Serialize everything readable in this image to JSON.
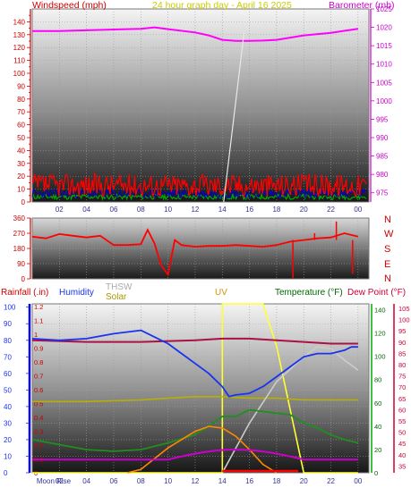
{
  "header": {
    "windspeed": "Windspeed (mph)",
    "title": "24 hour graph day - April 16 2025",
    "barometer": "Barometer (mb)"
  },
  "bottom_labels": {
    "rainfall": "Rainfall (.in)",
    "humidity": "Humidity",
    "thsw": "THSW",
    "solar": "Solar",
    "uv": "UV",
    "temperature": "Temperature (°F)",
    "dewpoint": "Dew Point (°F)",
    "moonrise": "Moon Rise"
  },
  "colors": {
    "wind": "#ff0000",
    "gust": "#0000cc",
    "wind_low": "#00aa00",
    "barometer": "#ff00ff",
    "humidity": "#1a33ee",
    "temperature": "#00aa00",
    "dewpoint": "#cc0033",
    "solar": "#b8b000",
    "thsw": "#cccccc",
    "uv": "#ffff33",
    "rain": "#ff0000",
    "label_red": "#cc0000"
  },
  "chart_data": [
    {
      "type": "line",
      "name": "windspeed-barometer",
      "x_ticks": [
        "02",
        "04",
        "06",
        "08",
        "10",
        "12",
        "14",
        "16",
        "18",
        "20",
        "22",
        "00"
      ],
      "y_left_ticks": [
        0,
        5,
        10,
        15,
        20,
        25,
        30,
        35,
        40,
        45,
        50,
        55,
        60,
        65,
        70,
        75,
        80,
        85,
        90,
        95,
        100,
        105,
        110,
        115,
        120,
        125,
        130,
        135,
        140,
        145
      ],
      "y_left_labeled": [
        0,
        10,
        20,
        30,
        40,
        50,
        60,
        70,
        80,
        90,
        100,
        110,
        120,
        130,
        140
      ],
      "ylim_left": [
        0,
        150
      ],
      "y_right_ticks": [
        975,
        980,
        985,
        990,
        995,
        1000,
        1005,
        1010,
        1015,
        1020,
        1025
      ],
      "ylim_right": [
        975,
        1025
      ],
      "series": [
        {
          "name": "Barometer",
          "axis": "right",
          "x": [
            0,
            2,
            4,
            6,
            8,
            9,
            10,
            12,
            13,
            14,
            15,
            16,
            17,
            18,
            20,
            22,
            24
          ],
          "values": [
            1019,
            1019,
            1019.2,
            1019.4,
            1019.6,
            1020,
            1019.5,
            1018.6,
            1017.8,
            1016.6,
            1016.3,
            1016.3,
            1016.4,
            1016.6,
            1017.8,
            1018.5,
            1019.6
          ]
        },
        {
          "name": "Wind",
          "axis": "left",
          "x": [
            0,
            2,
            4,
            6,
            8,
            10,
            12,
            14,
            16,
            18,
            20,
            22,
            24
          ],
          "values": [
            14,
            12,
            13,
            11,
            15,
            12,
            13,
            14,
            15,
            13,
            12,
            13,
            11
          ]
        },
        {
          "name": "Gust",
          "axis": "left",
          "x": [
            0,
            4,
            8,
            12,
            16,
            20,
            24
          ],
          "values": [
            8,
            7,
            9,
            8,
            9,
            8,
            7
          ]
        }
      ]
    },
    {
      "type": "line",
      "name": "wind-direction",
      "x_ticks": [
        "02",
        "04",
        "06",
        "08",
        "10",
        "12",
        "14",
        "16",
        "18",
        "20",
        "22",
        "00"
      ],
      "y_ticks": [
        0,
        90,
        180,
        270,
        360
      ],
      "compass": [
        "N",
        "W",
        "S",
        "E",
        "N"
      ],
      "ylim": [
        0,
        360
      ],
      "series": [
        {
          "name": "Direction",
          "x": [
            0,
            1,
            2,
            3,
            4,
            5,
            6,
            7,
            8,
            8.5,
            9,
            9.5,
            10,
            10.5,
            11,
            12,
            13,
            14,
            15,
            16,
            17,
            18,
            19,
            20,
            21,
            22,
            23,
            24
          ],
          "values": [
            250,
            240,
            265,
            255,
            245,
            255,
            200,
            200,
            205,
            290,
            210,
            80,
            25,
            230,
            200,
            190,
            195,
            195,
            200,
            195,
            190,
            200,
            220,
            230,
            240,
            245,
            270,
            250
          ]
        }
      ]
    },
    {
      "type": "line",
      "name": "rain-humidity-solar-uv-temperature",
      "x_ticks": [
        "Moon Rise",
        "02",
        "04",
        "06",
        "08",
        "10",
        "12",
        "14",
        "16",
        "18",
        "20",
        "22",
        "00"
      ],
      "y_rain_ticks": [
        0,
        0.1,
        0.2,
        0.3,
        0.4,
        0.5,
        0.6,
        0.7,
        0.8,
        0.9,
        1,
        1.1,
        1.2
      ],
      "y_humidity_ticks": [
        0,
        10,
        20,
        30,
        40,
        50,
        60,
        70,
        80,
        90,
        100
      ],
      "y_temp_ticks": [
        0,
        20,
        40,
        60,
        80,
        100,
        120,
        140
      ],
      "y_dew_ticks": [
        35,
        40,
        45,
        50,
        55,
        60,
        65,
        70,
        75,
        80,
        85,
        90,
        95,
        100,
        105
      ],
      "ylim_humidity": [
        0,
        100
      ],
      "ylim_temp": [
        0,
        140
      ],
      "series": [
        {
          "name": "Humidity",
          "x": [
            0,
            2,
            4,
            6,
            7,
            8,
            9,
            10,
            11,
            12,
            13,
            14,
            14.5,
            15,
            16,
            17,
            18,
            19,
            20,
            21,
            22,
            23,
            23.5,
            24
          ],
          "values": [
            81,
            80,
            81,
            84,
            85,
            86,
            82,
            78,
            72,
            66,
            60,
            52,
            46,
            47,
            48,
            52,
            58,
            64,
            70,
            72,
            72,
            74,
            76,
            76
          ]
        },
        {
          "name": "Temperature",
          "x": [
            0,
            2,
            4,
            6,
            8,
            10,
            12,
            13,
            14,
            15,
            16,
            17,
            18,
            19,
            20,
            21,
            22,
            23,
            24
          ],
          "values": [
            20,
            17,
            14,
            13,
            14,
            18,
            23,
            28,
            34,
            34,
            38,
            37,
            36,
            35,
            30,
            27,
            23,
            20,
            18
          ]
        },
        {
          "name": "Dew Point",
          "x": [
            0,
            4,
            8,
            12,
            14,
            16,
            18,
            20,
            22,
            24
          ],
          "values": [
            80,
            79,
            79,
            80,
            81,
            81,
            80,
            79,
            78,
            78
          ]
        },
        {
          "name": "Solar",
          "x": [
            0,
            4,
            8,
            10,
            12,
            14,
            16,
            18,
            20,
            22,
            24
          ],
          "values": [
            43,
            43,
            44,
            45,
            46,
            46,
            45,
            45,
            44,
            44,
            44
          ]
        },
        {
          "name": "THSW",
          "x": [
            14,
            16,
            18,
            20,
            21,
            22,
            23,
            24
          ],
          "values": [
            0,
            30,
            55,
            70,
            76,
            75,
            68,
            62
          ]
        },
        {
          "name": "UV",
          "x": [
            0,
            14,
            14,
            17,
            18,
            20,
            24
          ],
          "values": [
            0,
            0,
            100,
            100,
            75,
            0,
            0
          ]
        },
        {
          "name": "Orange",
          "x": [
            7,
            8,
            10,
            12,
            13,
            14,
            15,
            16,
            17,
            18
          ],
          "values": [
            0,
            2,
            15,
            25,
            28,
            27,
            22,
            14,
            5,
            0
          ]
        }
      ]
    }
  ]
}
